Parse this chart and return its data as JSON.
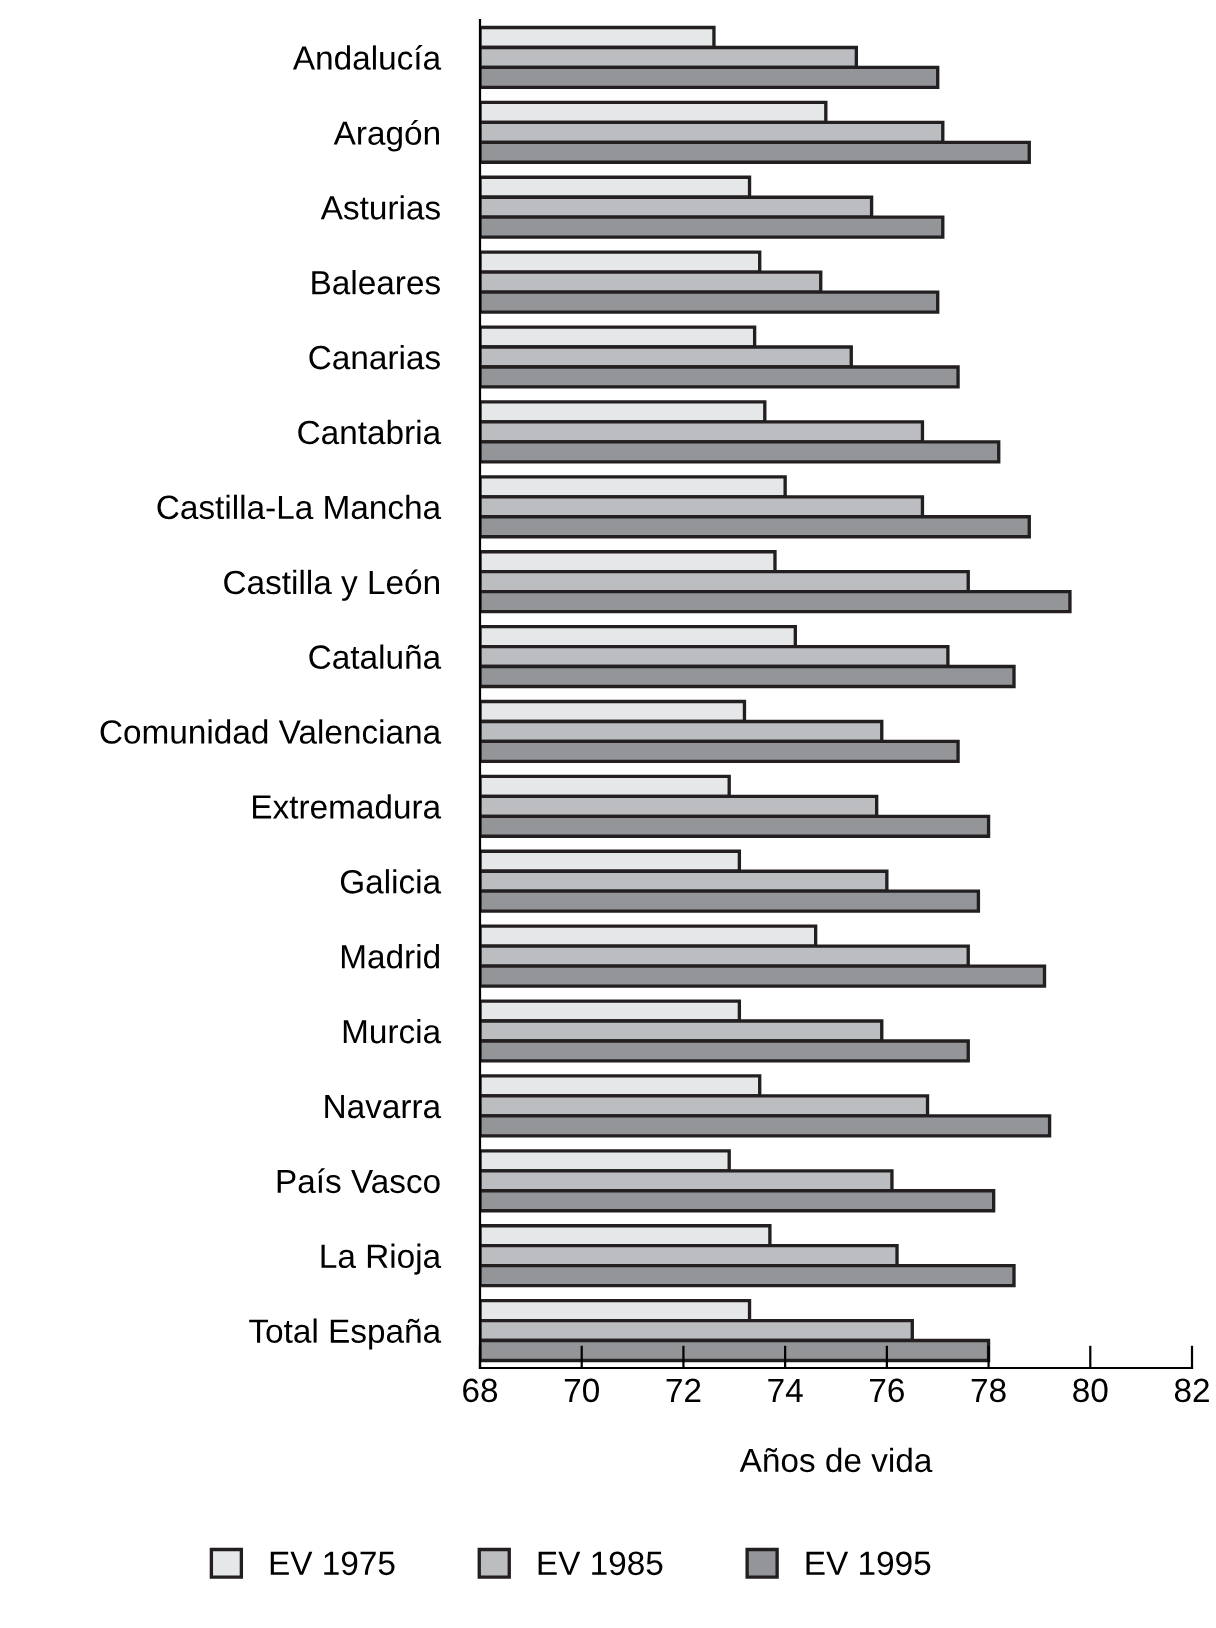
{
  "chart_data": {
    "type": "bar",
    "orientation": "horizontal",
    "xlabel": "Años de vida",
    "categories": [
      "Andalucía",
      "Aragón",
      "Asturias",
      "Baleares",
      "Canarias",
      "Cantabria",
      "Castilla-La Mancha",
      "Castilla y León",
      "Cataluña",
      "Comunidad Valenciana",
      "Extremadura",
      "Galicia",
      "Madrid",
      "Murcia",
      "Navarra",
      "País Vasco",
      "La Rioja",
      "Total España"
    ],
    "series": [
      {
        "name": "EV 1975",
        "color": "#e6e7e9",
        "values": [
          72.6,
          74.8,
          73.3,
          73.5,
          73.4,
          73.6,
          74.0,
          73.8,
          74.2,
          73.2,
          72.9,
          73.1,
          74.6,
          73.1,
          73.5,
          72.9,
          73.7,
          73.3
        ]
      },
      {
        "name": "EV 1985",
        "color": "#bcbdc0",
        "values": [
          75.4,
          77.1,
          75.7,
          74.7,
          75.3,
          76.7,
          76.7,
          77.6,
          77.2,
          75.9,
          75.8,
          76.0,
          77.6,
          75.9,
          76.8,
          76.1,
          76.2,
          76.5
        ]
      },
      {
        "name": "EV 1995",
        "color": "#939598",
        "values": [
          77.0,
          78.8,
          77.1,
          77.0,
          77.4,
          78.2,
          78.8,
          79.6,
          78.5,
          77.4,
          78.0,
          77.8,
          79.1,
          77.6,
          79.2,
          78.1,
          78.5,
          78.0
        ]
      }
    ],
    "xlim": [
      68,
      82
    ],
    "xticks": [
      68,
      70,
      72,
      74,
      76,
      78,
      80,
      82
    ],
    "grid": false,
    "legend": "bottom"
  }
}
